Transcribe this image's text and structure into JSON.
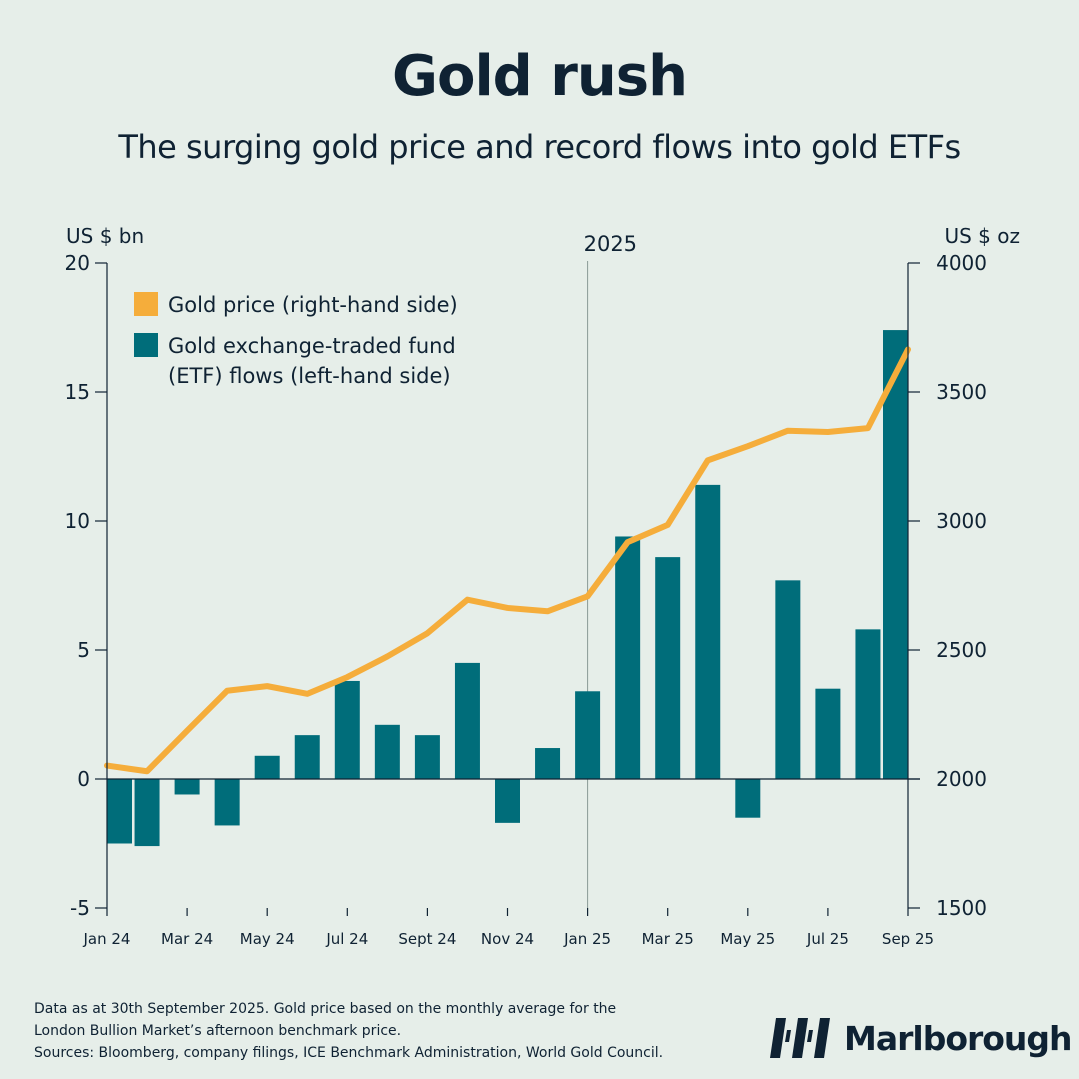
{
  "header": {
    "title": "Gold rush",
    "subtitle": "The surging gold price and record flows into gold ETFs"
  },
  "colors": {
    "gold": "#f5ad3b",
    "etf": "#006d7a",
    "ink": "#0f2233",
    "bg": "#e6eee9"
  },
  "chart_data": {
    "type": "bar+line",
    "left_axis_label": "US $ bn",
    "right_axis_label": "US $ oz",
    "divider_label": "2025",
    "left_range": [
      -5,
      20
    ],
    "right_range": [
      1500,
      4000
    ],
    "left_ticks": [
      -5,
      0,
      5,
      10,
      15,
      20
    ],
    "right_ticks": [
      1500,
      2000,
      2500,
      3000,
      3500,
      4000
    ],
    "months": [
      "Jan 24",
      "Feb 24",
      "Mar 24",
      "Apr 24",
      "May 24",
      "Jun 24",
      "Jul 24",
      "Aug 24",
      "Sept 24",
      "Oct 24",
      "Nov 24",
      "Dec 24",
      "Jan 25",
      "Feb 25",
      "Mar 25",
      "Apr 25",
      "May 25",
      "Jun 25",
      "Jul 25",
      "Aug 25",
      "Sep 25"
    ],
    "x_tick_labels": [
      "Jan 24",
      "Mar 24",
      "May 24",
      "Jul 24",
      "Sept 24",
      "Nov 24",
      "Jan 25",
      "Mar 25",
      "May 25",
      "Jul 25",
      "Sep 25"
    ],
    "etf_flows": [
      -2.5,
      -2.6,
      -0.6,
      -1.8,
      0.9,
      1.7,
      3.8,
      2.1,
      1.7,
      4.5,
      -1.7,
      1.2,
      3.4,
      9.4,
      8.6,
      11.4,
      -1.5,
      7.7,
      3.5,
      5.8,
      17.4
    ],
    "gold_price": [
      2052,
      2030,
      2187,
      2342,
      2360,
      2330,
      2395,
      2475,
      2565,
      2695,
      2663,
      2650,
      2708,
      2918,
      2985,
      3235,
      3290,
      3350,
      3345,
      3360,
      3665
    ],
    "legend": {
      "gold": "Gold price (right-hand side)",
      "etf_line1": "Gold exchange-traded fund",
      "etf_line2": "(ETF) flows (left-hand side)"
    }
  },
  "footer": {
    "note_line1": "Data as at 30th September 2025. Gold price based on the monthly average for the",
    "note_line2": "London Bullion Market’s afternoon benchmark price.",
    "sources": "Sources: Bloomberg, company filings, ICE Benchmark Administration, World Gold Council."
  },
  "brand": {
    "name": "Marlborough"
  }
}
